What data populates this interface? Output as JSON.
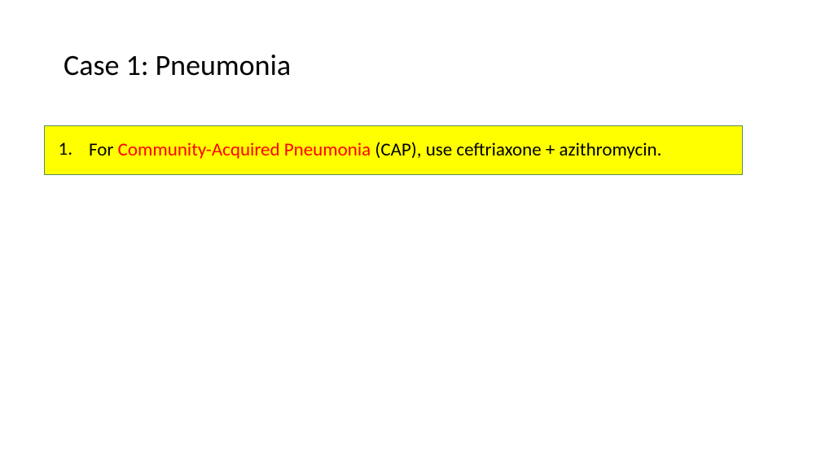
{
  "slide": {
    "title": "Case 1: Pneumonia",
    "title_fontsize": 36,
    "title_color": "#000000",
    "background_color": "#ffffff"
  },
  "highlight_box": {
    "background_color": "#ffff00",
    "border_color": "#5a8a5a",
    "border_width": 1
  },
  "list": {
    "number": "1.",
    "text_before": "For ",
    "emphasis_text": "Community-Acquired Pneumonia",
    "text_after": " (CAP), use ceftriaxone + azithromycin.",
    "fontsize": 23,
    "text_color": "#000000",
    "emphasis_color": "#ff0000"
  }
}
